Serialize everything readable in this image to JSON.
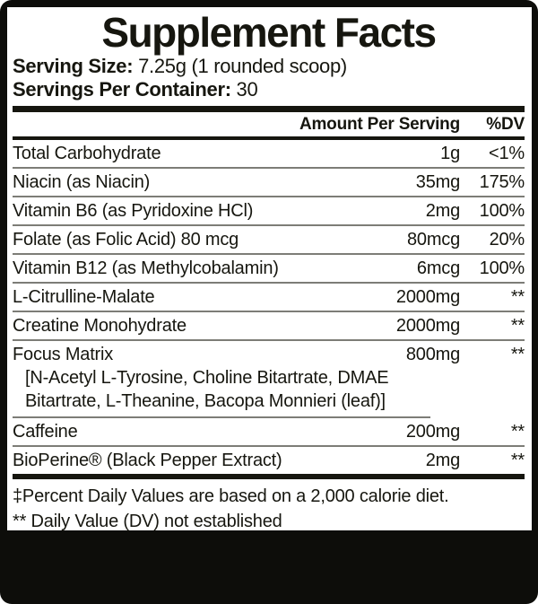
{
  "label": {
    "title": "Supplement Facts",
    "serving_size_label": "Serving Size:",
    "serving_size_value": " 7.25g (1 rounded scoop)",
    "servings_per_container_label": "Servings Per Container:",
    "servings_per_container_value": " 30"
  },
  "table": {
    "header": {
      "amount": "Amount Per Serving",
      "dv": "%DV"
    },
    "rows": [
      {
        "name": "Total Carbohydrate",
        "amount": "1g",
        "dv": "<1%"
      },
      {
        "name": "Niacin (as Niacin)",
        "amount": "35mg",
        "dv": "175%"
      },
      {
        "name": "Vitamin B6 (as Pyridoxine HCl)",
        "amount": "2mg",
        "dv": "100%"
      },
      {
        "name": "Folate (as Folic Acid) 80 mcg",
        "amount": "80mcg",
        "dv": "20%"
      },
      {
        "name": "Vitamin B12 (as Methylcobalamin)",
        "amount": "6mcg",
        "dv": "100%"
      },
      {
        "name": "L-Citrulline-Malate",
        "amount": "2000mg",
        "dv": "**"
      },
      {
        "name": "Creatine Monohydrate",
        "amount": "2000mg",
        "dv": "**"
      },
      {
        "name": "Focus Matrix",
        "amount": "800mg",
        "dv": "**",
        "sub": "[N-Acetyl L-Tyrosine, Choline Bitartrate, DMAE Bitartrate, L-Theanine, Bacopa Monnieri (leaf)]"
      },
      {
        "name": "Caffeine",
        "amount": "200mg",
        "dv": "**"
      },
      {
        "name": "BioPerine® (Black Pepper Extract)",
        "amount": "2mg",
        "dv": "**"
      }
    ]
  },
  "footnotes": {
    "line1": "‡Percent Daily Values are based on a 2,000 calorie diet.",
    "line2": "** Daily Value (DV) not established"
  },
  "colors": {
    "ink": "#16160f",
    "divider": "#7d7d77",
    "panel_background": "#ffffff",
    "label_background": "#0d0d0a"
  }
}
